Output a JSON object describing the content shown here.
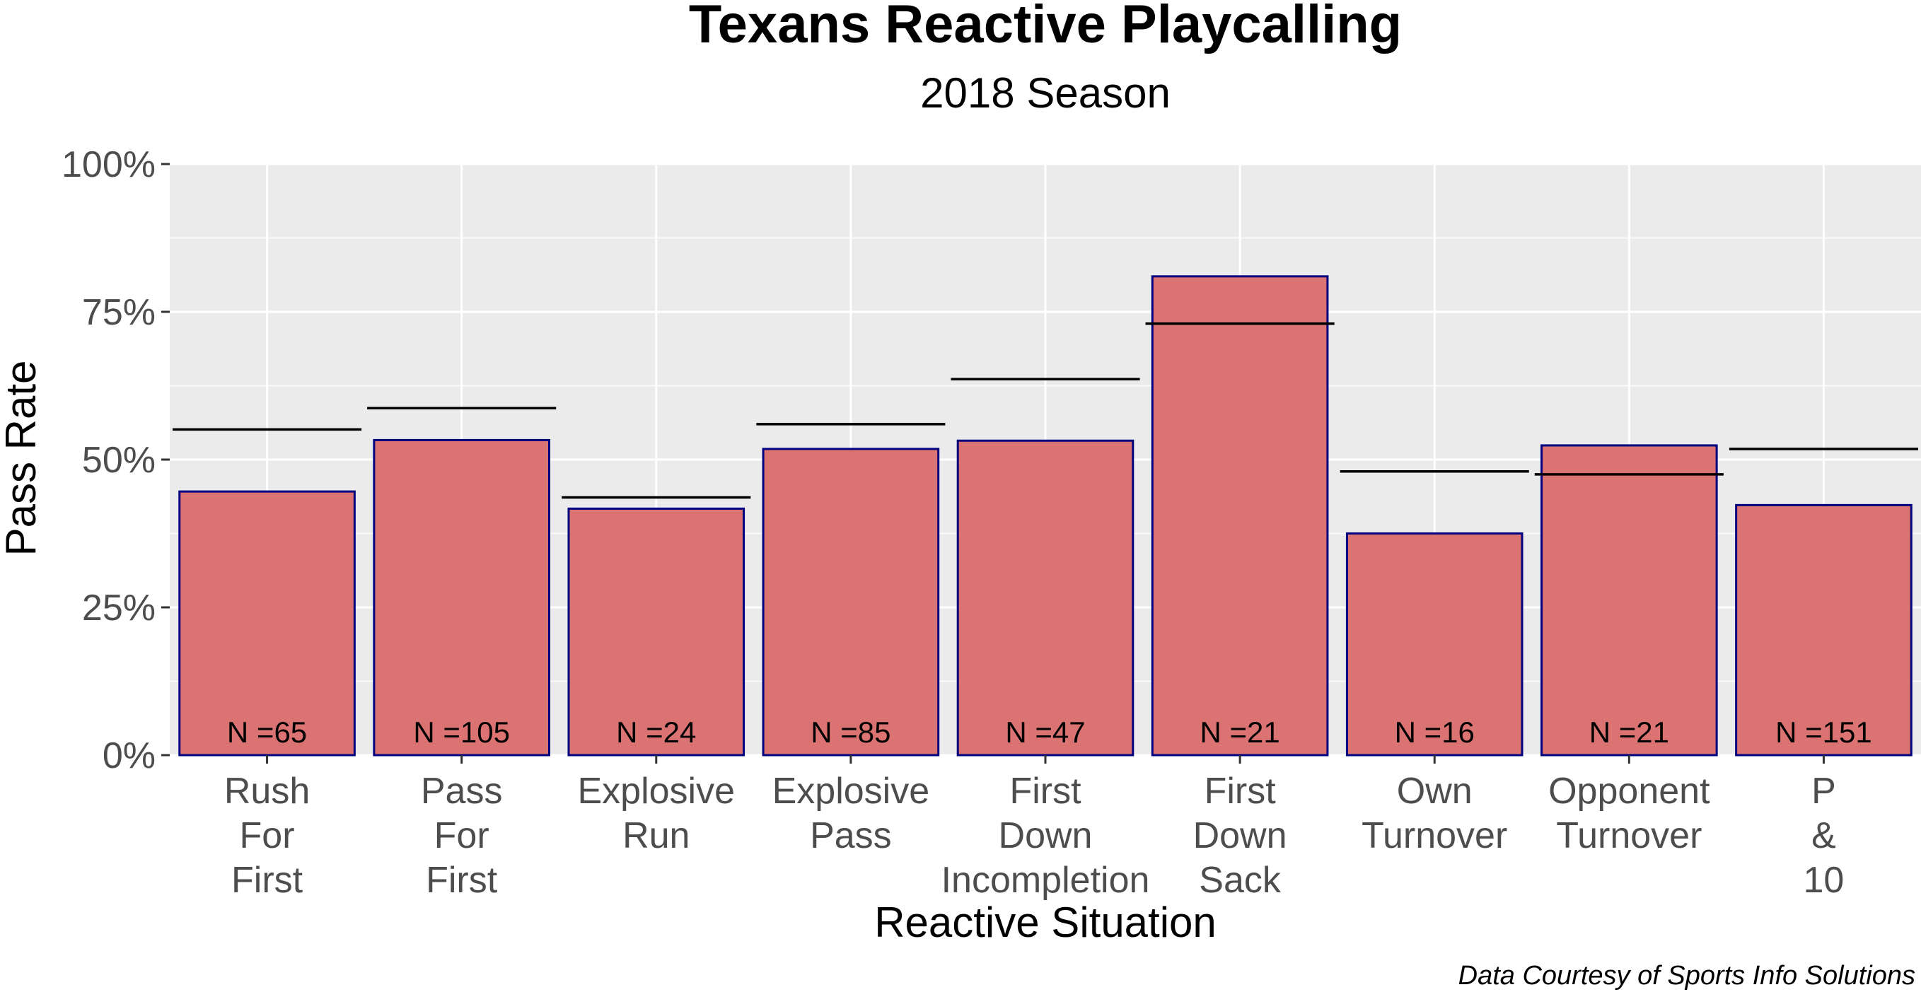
{
  "chart_data": {
    "type": "bar",
    "title": "Texans Reactive Playcalling",
    "subtitle": "2018 Season",
    "xlabel": "Reactive Situation",
    "ylabel": "Pass Rate",
    "caption": "Data Courtesy of Sports Info Solutions",
    "ylim": [
      0,
      1
    ],
    "yticks": [
      0,
      0.25,
      0.5,
      0.75,
      1.0
    ],
    "ytick_labels": [
      "0%",
      "25%",
      "50%",
      "75%",
      "100%"
    ],
    "grid": true,
    "categories": [
      [
        "Rush",
        "For",
        "First"
      ],
      [
        "Pass",
        "For",
        "First"
      ],
      [
        "Explosive",
        "Run"
      ],
      [
        "Explosive",
        "Pass"
      ],
      [
        "First",
        "Down",
        "Incompletion"
      ],
      [
        "First",
        "Down",
        "Sack"
      ],
      [
        "Own",
        "Turnover"
      ],
      [
        "Opponent",
        "Turnover"
      ],
      [
        "P",
        "&",
        "10"
      ]
    ],
    "values": [
      0.446,
      0.533,
      0.417,
      0.518,
      0.532,
      0.81,
      0.375,
      0.524,
      0.423
    ],
    "baseline": [
      0.551,
      0.587,
      0.436,
      0.56,
      0.636,
      0.73,
      0.48,
      0.475,
      0.518
    ],
    "n_labels": [
      "N =65",
      "N =105",
      "N =24",
      "N =85",
      "N =47",
      "N =21",
      "N =16",
      "N =21",
      "N =151"
    ],
    "colors": {
      "bar_fill": "#db7373",
      "bar_stroke": "#00007f",
      "panel_bg": "#ebebeb",
      "grid": "#ffffff",
      "baseline": "#000000"
    }
  }
}
